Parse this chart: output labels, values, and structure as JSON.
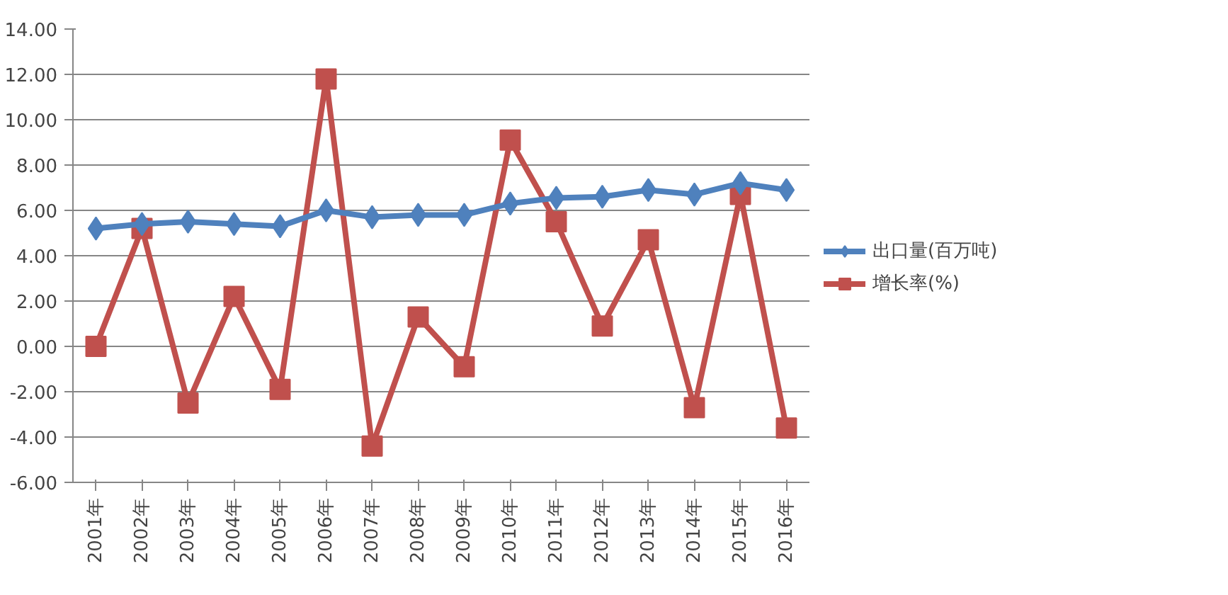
{
  "chart_data": {
    "type": "line",
    "categories": [
      "2001年",
      "2002年",
      "2003年",
      "2004年",
      "2005年",
      "2006年",
      "2007年",
      "2008年",
      "2009年",
      "2010年",
      "2011年",
      "2012年",
      "2013年",
      "2014年",
      "2015年",
      "2016年"
    ],
    "series": [
      {
        "name": "出口量(百万吨)",
        "color": "#4f81bd",
        "marker": "diamond",
        "values": [
          5.2,
          5.4,
          5.5,
          5.4,
          5.3,
          6.0,
          5.7,
          5.8,
          5.8,
          6.3,
          6.55,
          6.6,
          6.9,
          6.7,
          7.2,
          6.9
        ]
      },
      {
        "name": "增长率(%)",
        "color": "#c0504d",
        "marker": "square",
        "values": [
          0.0,
          5.2,
          -2.5,
          2.2,
          -1.9,
          11.8,
          -4.4,
          1.3,
          -0.9,
          9.1,
          5.5,
          0.9,
          4.7,
          -2.7,
          6.7,
          -3.6
        ]
      }
    ],
    "ylim": [
      -6,
      14
    ],
    "yticks": [
      {
        "value": -6,
        "label": "-6.00"
      },
      {
        "value": -4,
        "label": "-4.00"
      },
      {
        "value": -2,
        "label": "-2.00"
      },
      {
        "value": 0,
        "label": "0.00"
      },
      {
        "value": 2,
        "label": "2.00"
      },
      {
        "value": 4,
        "label": "4.00"
      },
      {
        "value": 6,
        "label": "6.00"
      },
      {
        "value": 8,
        "label": "8.00"
      },
      {
        "value": 10,
        "label": "10.00"
      },
      {
        "value": 12,
        "label": "12.00"
      },
      {
        "value": 14,
        "label": "14.00"
      }
    ],
    "grid": "y",
    "legend": "right",
    "line_style": "solid"
  }
}
